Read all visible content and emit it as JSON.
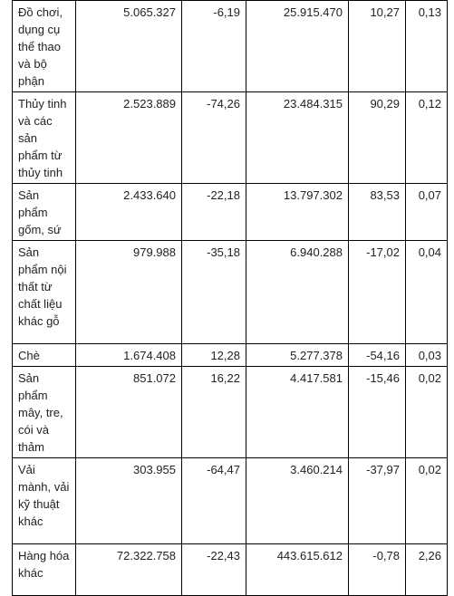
{
  "table": {
    "rows": [
      {
        "name": "Đồ chơi, dụng cụ thể thao và bộ phận",
        "v1": "5.065.327",
        "v2": "-6,19",
        "v3": "25.915.470",
        "v4": "10,27",
        "v5": "0,13"
      },
      {
        "name": "Thủy tinh và các sản phẩm từ thủy tinh",
        "v1": "2.523.889",
        "v2": "-74,26",
        "v3": "23.484.315",
        "v4": "90,29",
        "v5": "0,12"
      },
      {
        "name": "Sản phẩm gốm, sứ",
        "v1": "2.433.640",
        "v2": "-22,18",
        "v3": "13.797.302",
        "v4": "83,53",
        "v5": "0,07"
      },
      {
        "name": "Sản phẩm nội thất từ chất liệu khác gỗ",
        "v1": "979.988",
        "v2": "-35,18",
        "v3": "6.940.288",
        "v4": "-17,02",
        "v5": "0,04"
      },
      {
        "name": "Chè",
        "v1": "1.674.408",
        "v2": "12,28",
        "v3": "5.277.378",
        "v4": "-54,16",
        "v5": "0,03"
      },
      {
        "name": "Sản phẩm mây, tre, cói và thảm",
        "v1": "851.072",
        "v2": "16,22",
        "v3": "4.417.581",
        "v4": "-15,46",
        "v5": "0,02"
      },
      {
        "name": "Vải mành, vải kỹ thuật khác",
        "v1": "303.955",
        "v2": "-64,47",
        "v3": "3.460.214",
        "v4": "-37,97",
        "v5": "0,02"
      },
      {
        "name": "Hàng hóa khác",
        "v1": "72.322.758",
        "v2": "-22,43",
        "v3": "443.615.612",
        "v4": "-0,78",
        "v5": "2,26"
      }
    ]
  }
}
